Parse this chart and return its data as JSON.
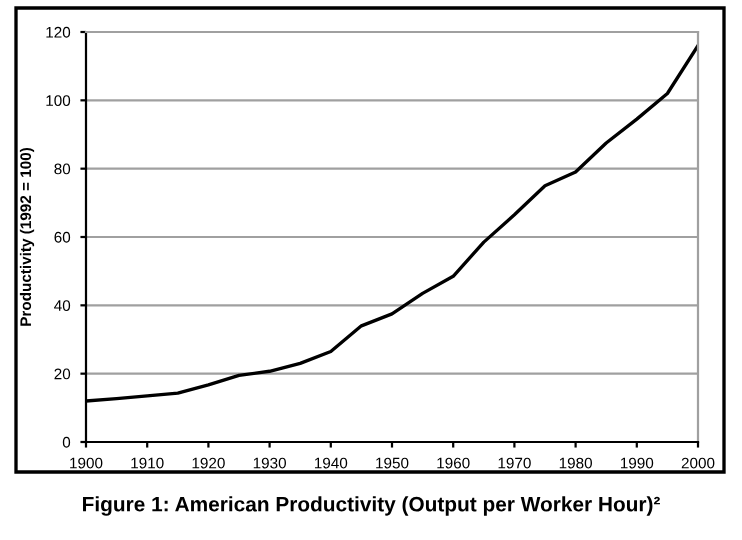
{
  "chart_data": {
    "type": "line",
    "title": "Figure 1: American Productivity (Output per Worker Hour)²",
    "ylabel": "Productivity (1992 = 100)",
    "x": [
      1900,
      1905,
      1910,
      1915,
      1920,
      1925,
      1930,
      1935,
      1940,
      1945,
      1950,
      1955,
      1960,
      1965,
      1970,
      1975,
      1980,
      1985,
      1990,
      1995,
      2000
    ],
    "series": [
      {
        "color": "#000000",
        "values": [
          12,
          12.7,
          13.5,
          14.3,
          16.7,
          19.5,
          20.7,
          23,
          26.5,
          34,
          37.5,
          43.5,
          48.5,
          58.5,
          66.5,
          75,
          79,
          87.5,
          94.5,
          102,
          116
        ]
      }
    ],
    "xlim": [
      1900,
      2000
    ],
    "xticks": [
      1900,
      1910,
      1920,
      1930,
      1940,
      1950,
      1960,
      1970,
      1980,
      1990,
      2000
    ],
    "ylim": [
      0,
      120
    ],
    "yticks": [
      0,
      20,
      40,
      60,
      80,
      100,
      120
    ],
    "grid": "y",
    "legend": false,
    "marker": "none",
    "line_style": "solid"
  }
}
